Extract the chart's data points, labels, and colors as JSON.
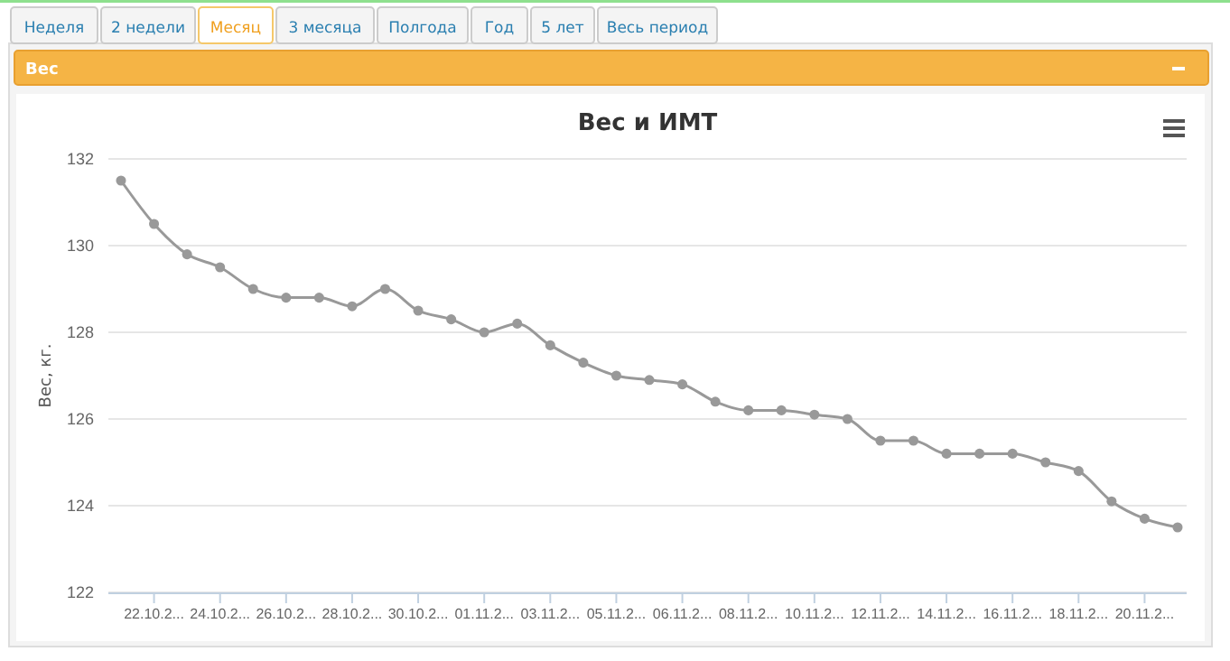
{
  "chart_data": {
    "type": "line",
    "title": "Вес и ИМТ",
    "ylabel": "Вес, кг.",
    "annotations": [
      "Неделя",
      "2 недели",
      "Месяц",
      "3 месяца",
      "Полгода",
      "Год",
      "5 лет",
      "Весь период",
      "Вес"
    ],
    "categories": [
      null,
      "22.10.2...",
      null,
      "24.10.2...",
      null,
      "26.10.2...",
      null,
      "28.10.2...",
      null,
      "30.10.2...",
      null,
      "01.11.2...",
      null,
      "03.11.2...",
      null,
      "05.11.2...",
      null,
      "06.11.2...",
      null,
      "08.11.2...",
      null,
      "10.11.2...",
      null,
      "12.11.2...",
      null,
      "14.11.2...",
      null,
      "16.11.2...",
      null,
      "18.11.2...",
      null,
      "20.11.2...",
      null
    ],
    "series": [
      {
        "color": "#999999",
        "values": [
          131.5,
          130.5,
          129.8,
          129.5,
          129.0,
          128.8,
          128.8,
          128.6,
          129.0,
          128.5,
          128.3,
          128.0,
          128.2,
          127.7,
          127.3,
          127.0,
          126.9,
          126.8,
          126.4,
          126.2,
          126.2,
          126.1,
          126.0,
          125.5,
          125.5,
          125.2,
          125.2,
          125.2,
          125.0,
          124.8,
          124.1,
          123.7,
          123.5
        ]
      }
    ],
    "ylim": [
      122,
      132
    ],
    "yticks": [
      122,
      124,
      126,
      128,
      130,
      132
    ],
    "grid": "y",
    "marker": "circle",
    "line_style": "solid"
  }
}
